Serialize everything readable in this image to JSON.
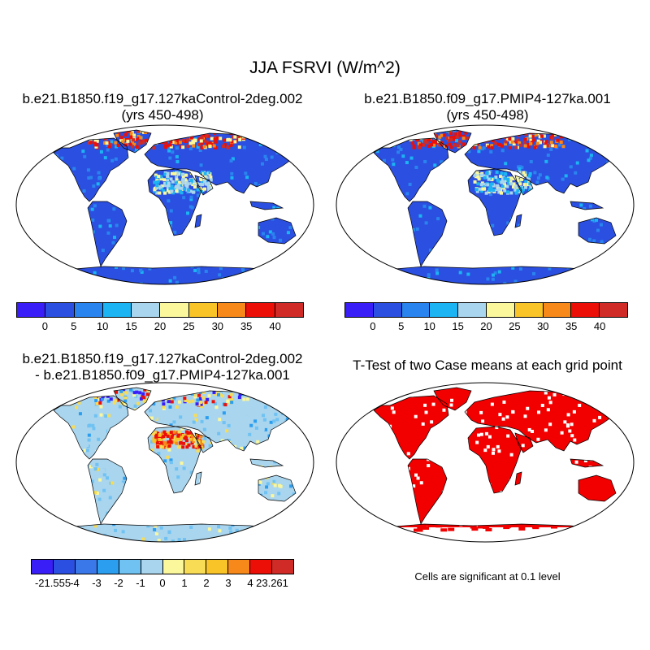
{
  "title": "JJA FSRVI (W/m^2)",
  "panels": [
    {
      "id": "p1",
      "title_line1": "b.e21.B1850.f19_g17.127kaControl-2deg.002",
      "title_line2": "(yrs 450-498)",
      "type": "mean"
    },
    {
      "id": "p2",
      "title_line1": "b.e21.B1850.f09_g17.PMIP4-127ka.001",
      "title_line2": "(yrs 450-498)",
      "type": "mean"
    },
    {
      "id": "p3",
      "title_line1": "b.e21.B1850.f19_g17.127kaControl-2deg.002",
      "title_line2": "- b.e21.B1850.f09_g17.PMIP4-127ka.001",
      "type": "diff"
    },
    {
      "id": "p4",
      "title_line1": "T-Test of two Case means at each grid point",
      "title_line2": "",
      "type": "ttest"
    }
  ],
  "colorbar_mean": {
    "colors": [
      "#3a1ef8",
      "#2b4fe0",
      "#2a84ef",
      "#1cb4f2",
      "#a9d5ee",
      "#faf79c",
      "#f9c427",
      "#f7891a",
      "#ec0f08",
      "#d02b26"
    ],
    "labels": [
      "0",
      "5",
      "10",
      "15",
      "20",
      "25",
      "30",
      "35",
      "40"
    ]
  },
  "colorbar_diff": {
    "colors": [
      "#3a1ef8",
      "#2b4fe0",
      "#3a78ea",
      "#2c9ef0",
      "#6fc2f2",
      "#a9d5ee",
      "#faf79c",
      "#f9dc55",
      "#f9c427",
      "#f7891a",
      "#ec0f08",
      "#d02b26"
    ],
    "labels": [
      "-21.555",
      "-4",
      "-3",
      "-2",
      "-1",
      "0",
      "1",
      "2",
      "3",
      "4",
      "23.261"
    ]
  },
  "ttest_color": "#f20000",
  "significance_note": "Cells are significant at 0.1 level"
}
